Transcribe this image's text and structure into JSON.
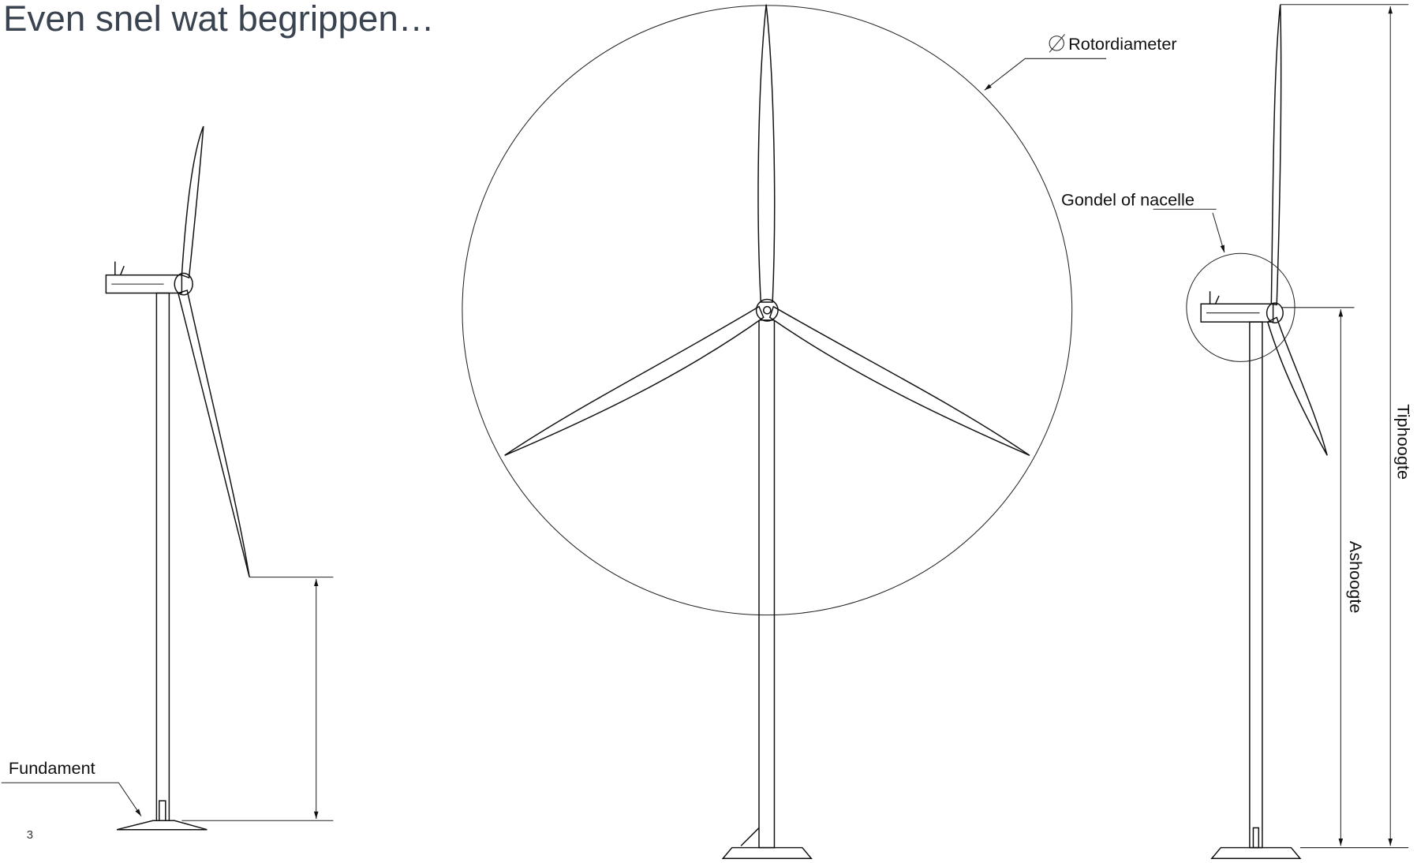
{
  "header": {
    "title": "Even snel wat begrippen…"
  },
  "labels": {
    "rotor_diameter": "Rotordiameter",
    "nacelle": "Gondel of nacelle",
    "tip_height": "Tiphoogte",
    "hub_height": "Ashoogte",
    "foundation": "Fundament"
  },
  "footer": {
    "page_number": "3"
  }
}
